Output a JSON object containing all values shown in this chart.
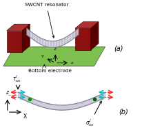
{
  "bg_color": "#ffffff",
  "panel_a_label": "(a)",
  "panel_b_label": "(b)",
  "swcnt_label": "SWCNT resonator",
  "electrode_label": "Bottom electrode",
  "tau_label": "$\\tau^{l}_{xx}$",
  "sigma_label": "$\\sigma^{l}_{xx}$",
  "axis_x_label": "X",
  "axis_z_label": "z",
  "axis_z2_label": "Z",
  "axis_y2_label": "Y",
  "axis_x2_label": "x",
  "beam_color": "#c0c0d0",
  "beam_edge_color": "#909099",
  "substrate_color": "#7dc050",
  "block_color": "#8b1010",
  "block_top_color": "#b03030",
  "block_side_color": "#5a0000",
  "arrow_red": "#ff2020",
  "arrow_cyan": "#00bbcc",
  "arrow_black": "#000000",
  "dot_green": "#009900",
  "dot_dark": "#006600",
  "tube_fill": "#d0d0e0",
  "tube_edge": "#808090"
}
